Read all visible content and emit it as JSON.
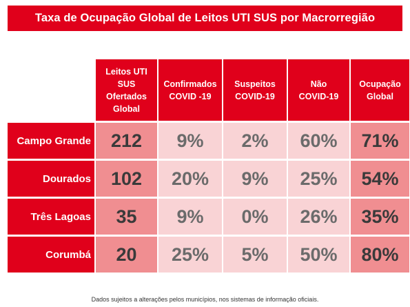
{
  "title": "Taxa de Ocupação Global de Leitos UTI SUS por Macrorregião",
  "columns": [
    "Leitos UTI\nSUS\nOfertados\nGlobal",
    "Confirmados\nCOVID -19",
    "Suspeitos\nCOVID-19",
    "Não\nCOVID-19",
    "Ocupação\nGlobal"
  ],
  "rows": [
    {
      "region": "Campo Grande",
      "leitos": "212",
      "confirmados": "9%",
      "suspeitos": "2%",
      "nao_covid": "60%",
      "ocupacao": "71%"
    },
    {
      "region": "Dourados",
      "leitos": "102",
      "confirmados": "20%",
      "suspeitos": "9%",
      "nao_covid": "25%",
      "ocupacao": "54%"
    },
    {
      "region": "Três Lagoas",
      "leitos": "35",
      "confirmados": "9%",
      "suspeitos": "0%",
      "nao_covid": "26%",
      "ocupacao": "35%"
    },
    {
      "region": "Corumbá",
      "leitos": "20",
      "confirmados": "25%",
      "suspeitos": "5%",
      "nao_covid": "50%",
      "ocupacao": "80%"
    }
  ],
  "footnote": "Dados sujeitos a alterações pelos municípios, nos sistemas de informação oficiais.",
  "colors": {
    "header": "#e0001b",
    "dark_cell": "#f08e91",
    "light_cell": "#f9d3d5",
    "mid_cell": "#f4b7ba"
  }
}
